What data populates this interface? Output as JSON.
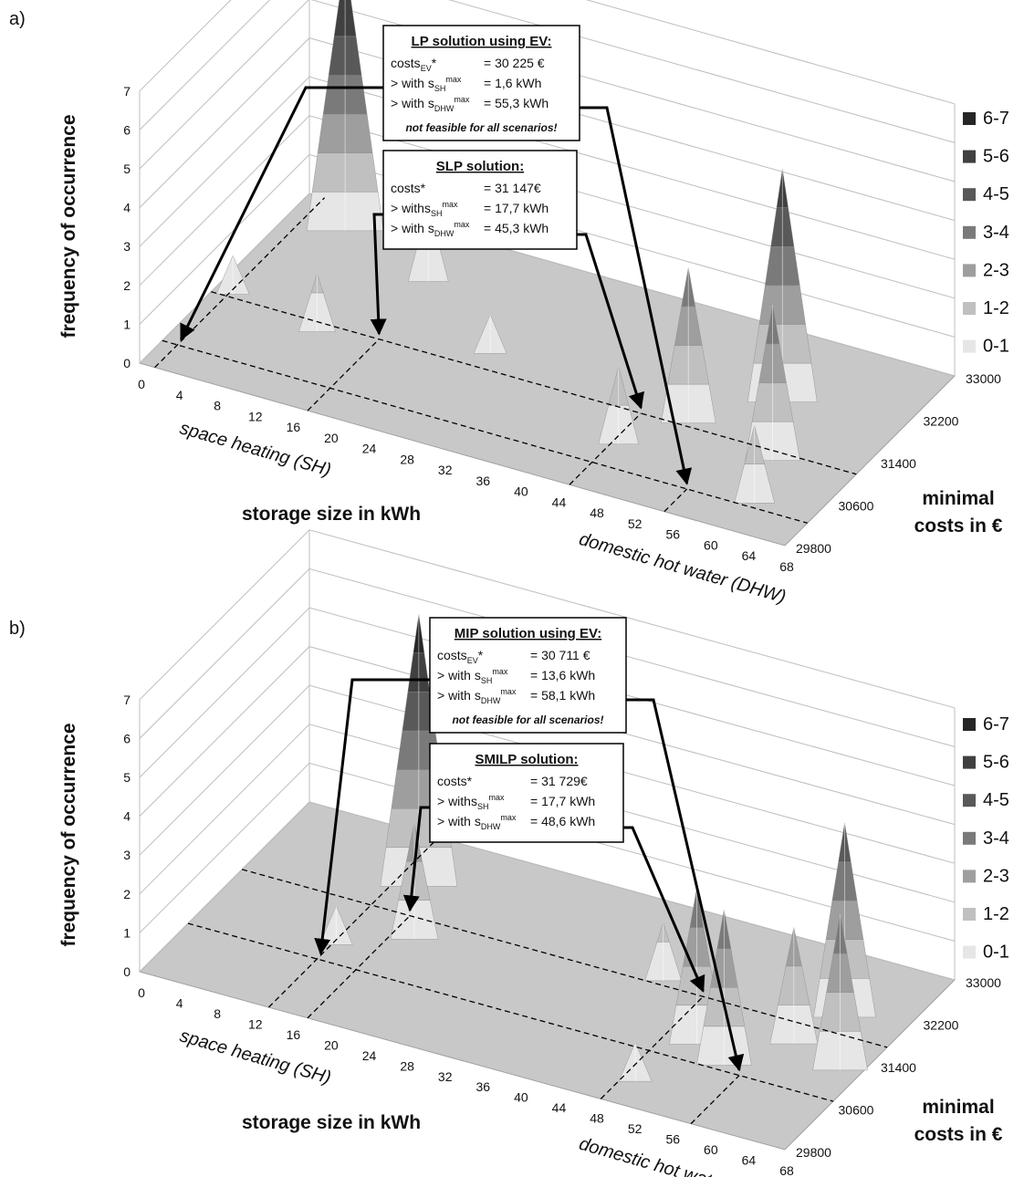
{
  "chart_data": [
    {
      "panel_label": "a)",
      "type": "surface3d",
      "zlabel": "frequency of occurrence",
      "xlabel": "storage size in kWh",
      "sh_axis_label": "space heating (SH)",
      "dhw_axis_label": "domestic hot water (DHW)",
      "ylabel": "minimal costs in €",
      "z_ticks": [
        "0",
        "1",
        "2",
        "3",
        "4",
        "5",
        "6",
        "7"
      ],
      "x_ticks": [
        "0",
        "4",
        "8",
        "12",
        "16",
        "20",
        "24",
        "28",
        "32",
        "36",
        "40",
        "44",
        "48",
        "52",
        "56",
        "60",
        "64",
        "68"
      ],
      "y_ticks": [
        "29800",
        "30600",
        "31400",
        "32200",
        "33000"
      ],
      "legend": [
        "6-7",
        "5-6",
        "4-5",
        "3-4",
        "2-3",
        "1-2",
        "0-1"
      ],
      "legend_colors": [
        "#262626",
        "#404040",
        "#595959",
        "#7a7a7a",
        "#9e9e9e",
        "#c0c0c0",
        "#e6e6e6"
      ],
      "peaks": [
        {
          "x": 6,
          "cost": 32600,
          "z": 7
        },
        {
          "x": 12,
          "cost": 31000,
          "z": 1.5
        },
        {
          "x": 2,
          "cost": 31200,
          "z": 1
        },
        {
          "x": 17,
          "cost": 32200,
          "z": 2
        },
        {
          "x": 28,
          "cost": 31400,
          "z": 1
        },
        {
          "x": 46,
          "cost": 30600,
          "z": 2
        },
        {
          "x": 50,
          "cost": 31200,
          "z": 4
        },
        {
          "x": 56,
          "cost": 31900,
          "z": 6
        },
        {
          "x": 60,
          "cost": 31000,
          "z": 4
        },
        {
          "x": 62,
          "cost": 30300,
          "z": 2
        }
      ],
      "box_top": {
        "title": "LP solution using EV:",
        "line1_pre": "costs",
        "line1_sub": "EV",
        "line1_post": "*",
        "line1_val": "= 30 225 €",
        "line2_pre": "> with s",
        "line2_sub": "SH",
        "line2_sup": "max",
        "line2_val": "= 1,6 kWh",
        "line3_pre": "> with s",
        "line3_sub": "DHW",
        "line3_sup": "max",
        "line3_val": "= 55,3 kWh",
        "note": "not feasible for all scenarios!"
      },
      "box_bottom": {
        "title": "SLP solution:",
        "line1_pre": "costs*",
        "line1_val": "= 31 147€",
        "line2_pre": "> withs",
        "line2_sub": "SH",
        "line2_sup": "max",
        "line2_val": "= 17,7 kWh",
        "line3_pre": "> with s",
        "line3_sub": "DHW",
        "line3_sup": "max",
        "line3_val": "= 45,3 kWh"
      }
    },
    {
      "panel_label": "b)",
      "type": "surface3d",
      "zlabel": "frequency of occurrence",
      "xlabel": "storage size in kWh",
      "sh_axis_label": "space heating (SH)",
      "dhw_axis_label": "domestic hot water (DHW)",
      "ylabel": "minimal costs in €",
      "z_ticks": [
        "0",
        "1",
        "2",
        "3",
        "4",
        "5",
        "6",
        "7"
      ],
      "x_ticks": [
        "0",
        "4",
        "8",
        "12",
        "16",
        "20",
        "24",
        "28",
        "32",
        "36",
        "40",
        "44",
        "48",
        "52",
        "56",
        "60",
        "64",
        "68"
      ],
      "y_ticks": [
        "29800",
        "30600",
        "31400",
        "32200",
        "33000"
      ],
      "legend": [
        "6-7",
        "5-6",
        "4-5",
        "3-4",
        "2-3",
        "1-2",
        "0-1"
      ],
      "legend_colors": [
        "#262626",
        "#404040",
        "#595959",
        "#7a7a7a",
        "#9e9e9e",
        "#c0c0c0",
        "#e6e6e6"
      ],
      "peaks": [
        {
          "x": 16,
          "cost": 32200,
          "z": 7
        },
        {
          "x": 20,
          "cost": 31400,
          "z": 3
        },
        {
          "x": 14,
          "cost": 31000,
          "z": 1
        },
        {
          "x": 44,
          "cost": 31800,
          "z": 1.5
        },
        {
          "x": 52,
          "cost": 31000,
          "z": 4
        },
        {
          "x": 56,
          "cost": 30800,
          "z": 4
        },
        {
          "x": 60,
          "cost": 31400,
          "z": 3
        },
        {
          "x": 62,
          "cost": 32000,
          "z": 5
        },
        {
          "x": 66,
          "cost": 31200,
          "z": 4
        },
        {
          "x": 50,
          "cost": 30200,
          "z": 1
        }
      ],
      "box_top": {
        "title": "MIP solution using EV:",
        "line1_pre": "costs",
        "line1_sub": "EV",
        "line1_post": "*",
        "line1_val": "= 30 711 €",
        "line2_pre": "> with s",
        "line2_sub": "SH",
        "line2_sup": "max",
        "line2_val": "= 13,6 kWh",
        "line3_pre": "> with s",
        "line3_sub": "DHW",
        "line3_sup": "max",
        "line3_val": "= 58,1 kWh",
        "note": "not feasible for all scenarios!"
      },
      "box_bottom": {
        "title": "SMILP solution:",
        "line1_pre": "costs*",
        "line1_val": "= 31 729€",
        "line2_pre": "> withs",
        "line2_sub": "SH",
        "line2_sup": "max",
        "line2_val": "= 17,7 kWh",
        "line3_pre": "> with s",
        "line3_sub": "DHW",
        "line3_sup": "max",
        "line3_val": "= 48,6 kWh"
      }
    }
  ]
}
